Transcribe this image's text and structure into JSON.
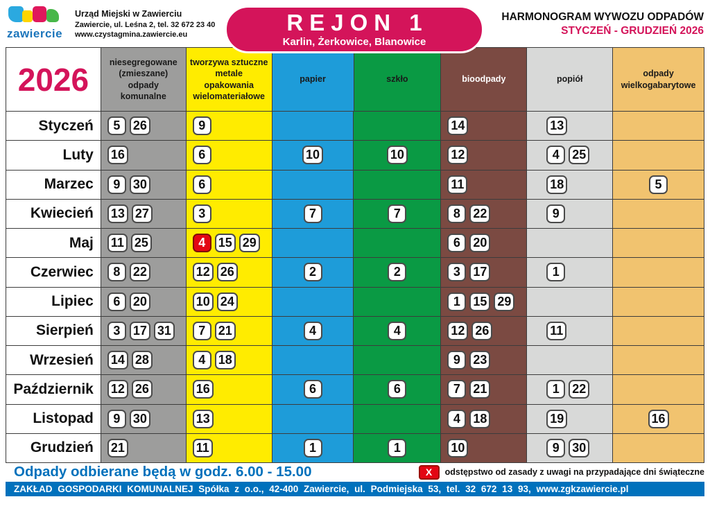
{
  "header": {
    "logo_text": "zawiercie",
    "office": {
      "line1": "Urząd Miejski w Zawierciu",
      "line2": "Zawiercie, ul. Leśna 2, tel. 32 672 23 40",
      "line3": "www.czystagmina.zawiercie.eu"
    },
    "badge": {
      "title": "REJON 1",
      "subtitle": "Karlin, Żerkowice, Blanowice"
    },
    "title": "HARMONOGRAM WYWOZU ODPADÓW",
    "period": "STYCZEŃ - GRUDZIEŃ 2026"
  },
  "table": {
    "year": "2026",
    "columns": [
      {
        "key": "zmieszane",
        "label": "niesegregowane\n(zmieszane)\nodpady\nkomunalne",
        "bg": "#9d9d9c",
        "fg": "#1a1a1a",
        "align": "left"
      },
      {
        "key": "tworzywa",
        "label": "tworzywa sztuczne\nmetale\nopakowania\nwielomateriałowe",
        "bg": "#ffec00",
        "fg": "#1a1a1a",
        "align": "left"
      },
      {
        "key": "papier",
        "label": "papier",
        "bg": "#1e9cd9",
        "fg": "#1a1a1a",
        "align": "center"
      },
      {
        "key": "szklo",
        "label": "szkło",
        "bg": "#0a9a44",
        "fg": "#1a1a1a",
        "align": "center"
      },
      {
        "key": "bio",
        "label": "bioodpady",
        "bg": "#7b4a42",
        "fg": "#ffffff",
        "align": "left"
      },
      {
        "key": "popiol",
        "label": "popiół",
        "bg": "#d8d9d8",
        "fg": "#1a1a1a",
        "align": "indent"
      },
      {
        "key": "gabaryty",
        "label": "odpady\nwielkogabarytowe",
        "bg": "#f1c36f",
        "fg": "#1a1a1a",
        "align": "center"
      }
    ],
    "months": [
      {
        "name": "Styczeń",
        "dates": {
          "zmieszane": [
            "5",
            "26"
          ],
          "tworzywa": [
            "9"
          ],
          "papier": [],
          "szklo": [],
          "bio": [
            "14"
          ],
          "popiol": [
            "13"
          ],
          "gabaryty": []
        }
      },
      {
        "name": "Luty",
        "dates": {
          "zmieszane": [
            "16"
          ],
          "tworzywa": [
            "6"
          ],
          "papier": [
            "10"
          ],
          "szklo": [
            "10"
          ],
          "bio": [
            "12"
          ],
          "popiol": [
            "4",
            "25"
          ],
          "gabaryty": []
        }
      },
      {
        "name": "Marzec",
        "dates": {
          "zmieszane": [
            "9",
            "30"
          ],
          "tworzywa": [
            "6"
          ],
          "papier": [],
          "szklo": [],
          "bio": [
            "11"
          ],
          "popiol": [
            "18"
          ],
          "gabaryty": [
            "5"
          ]
        }
      },
      {
        "name": "Kwiecień",
        "dates": {
          "zmieszane": [
            "13",
            "27"
          ],
          "tworzywa": [
            "3"
          ],
          "papier": [
            "7"
          ],
          "szklo": [
            "7"
          ],
          "bio": [
            "8",
            "22"
          ],
          "popiol": [
            "9"
          ],
          "gabaryty": []
        }
      },
      {
        "name": "Maj",
        "dates": {
          "zmieszane": [
            "11",
            "25"
          ],
          "tworzywa": [
            {
              "v": "4",
              "holiday_shift": true
            },
            "15",
            "29"
          ],
          "papier": [],
          "szklo": [],
          "bio": [
            "6",
            "20"
          ],
          "popiol": [],
          "gabaryty": []
        }
      },
      {
        "name": "Czerwiec",
        "dates": {
          "zmieszane": [
            "8",
            "22"
          ],
          "tworzywa": [
            "12",
            "26"
          ],
          "papier": [
            "2"
          ],
          "szklo": [
            "2"
          ],
          "bio": [
            "3",
            "17"
          ],
          "popiol": [
            "1"
          ],
          "gabaryty": []
        }
      },
      {
        "name": "Lipiec",
        "dates": {
          "zmieszane": [
            "6",
            "20"
          ],
          "tworzywa": [
            "10",
            "24"
          ],
          "papier": [],
          "szklo": [],
          "bio": [
            "1",
            "15",
            "29"
          ],
          "popiol": [],
          "gabaryty": []
        }
      },
      {
        "name": "Sierpień",
        "dates": {
          "zmieszane": [
            "3",
            "17",
            "31"
          ],
          "tworzywa": [
            "7",
            "21"
          ],
          "papier": [
            "4"
          ],
          "szklo": [
            "4"
          ],
          "bio": [
            "12",
            "26"
          ],
          "popiol": [
            "11"
          ],
          "gabaryty": []
        }
      },
      {
        "name": "Wrzesień",
        "dates": {
          "zmieszane": [
            "14",
            "28"
          ],
          "tworzywa": [
            "4",
            "18"
          ],
          "papier": [],
          "szklo": [],
          "bio": [
            "9",
            "23"
          ],
          "popiol": [],
          "gabaryty": []
        }
      },
      {
        "name": "Październik",
        "dates": {
          "zmieszane": [
            "12",
            "26"
          ],
          "tworzywa": [
            "16"
          ],
          "papier": [
            "6"
          ],
          "szklo": [
            "6"
          ],
          "bio": [
            "7",
            "21"
          ],
          "popiol": [
            "1",
            "22"
          ],
          "gabaryty": []
        }
      },
      {
        "name": "Listopad",
        "dates": {
          "zmieszane": [
            "9",
            "30"
          ],
          "tworzywa": [
            "13"
          ],
          "papier": [],
          "szklo": [],
          "bio": [
            "4",
            "18"
          ],
          "popiol": [
            "19"
          ],
          "gabaryty": [
            "16"
          ]
        }
      },
      {
        "name": "Grudzień",
        "dates": {
          "zmieszane": [
            "21"
          ],
          "tworzywa": [
            "11"
          ],
          "papier": [
            "1"
          ],
          "szklo": [
            "1"
          ],
          "bio": [
            "10"
          ],
          "popiol": [
            "9",
            "30"
          ],
          "gabaryty": []
        }
      }
    ]
  },
  "footer": {
    "hours": "Odpady odbierane będą w godz. 6.00 - 15.00",
    "legend_marker": "X",
    "legend_text": "odstępstwo od zasady z uwagi na przypadające dni świąteczne",
    "company_bar": "ZAKŁAD GOSPODARKI KOMUNALNEJ Spółka z o.o.,   42-400 Zawiercie,   ul. Podmiejska 53,   tel. 32 672 13 93,   www.zgkzawiercie.pl"
  },
  "colors": {
    "accent_pink": "#d4145a",
    "footer_blue": "#0071bc",
    "holiday_red": "#e30613"
  }
}
